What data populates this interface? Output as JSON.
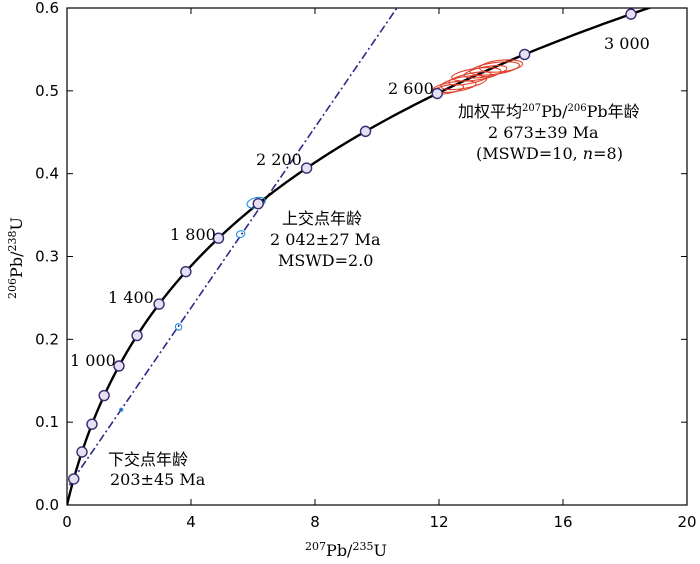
{
  "chart_data": {
    "type": "scatter",
    "title": "",
    "xlabel": {
      "sup1": "207",
      "base1": "Pb/",
      "sup2": "235",
      "base2": "U"
    },
    "ylabel": {
      "sup1": "206",
      "base1": "Pb/",
      "sup2": "238",
      "base2": "U"
    },
    "xlim": [
      0,
      20
    ],
    "ylim": [
      0,
      0.6
    ],
    "xticks": [
      "0",
      "4",
      "8",
      "12",
      "16",
      "20"
    ],
    "yticks": [
      "0.0",
      "0.1",
      "0.2",
      "0.3",
      "0.4",
      "0.5",
      "0.6"
    ],
    "concordia_ages_ma": [
      200,
      400,
      600,
      800,
      1000,
      1200,
      1400,
      1600,
      1800,
      2000,
      2200,
      2400,
      2600,
      2800,
      3000
    ],
    "age_labels": [
      "1 000",
      "1 400",
      "1 800",
      "2 200",
      "2 600",
      "3 000"
    ],
    "discordia": {
      "lower_intercept_ma": 203,
      "upper_intercept_ma": 2042
    },
    "ellipses": {
      "discordant_blue": [
        {
          "x": 6.1,
          "y": 0.365,
          "rx": 0.3,
          "ry": 0.006,
          "rotation": -15
        },
        {
          "x": 5.6,
          "y": 0.327,
          "rx": 0.14,
          "ry": 0.004,
          "rotation": -20
        },
        {
          "x": 3.6,
          "y": 0.215,
          "rx": 0.1,
          "ry": 0.004,
          "rotation": -35
        },
        {
          "x": 1.75,
          "y": 0.115,
          "rx": 0.05,
          "ry": 0.002,
          "rotation": -30
        }
      ],
      "concordant_red": [
        {
          "x": 12.5,
          "y": 0.505,
          "rx": 0.7,
          "ry": 0.006,
          "rotation": -8
        },
        {
          "x": 12.8,
          "y": 0.51,
          "rx": 0.75,
          "ry": 0.007,
          "rotation": -10
        },
        {
          "x": 13.0,
          "y": 0.515,
          "rx": 0.7,
          "ry": 0.006,
          "rotation": -12
        },
        {
          "x": 13.2,
          "y": 0.52,
          "rx": 0.8,
          "ry": 0.007,
          "rotation": -8
        },
        {
          "x": 13.5,
          "y": 0.523,
          "rx": 0.7,
          "ry": 0.006,
          "rotation": -10
        },
        {
          "x": 13.8,
          "y": 0.527,
          "rx": 0.8,
          "ry": 0.007,
          "rotation": -8
        },
        {
          "x": 14.0,
          "y": 0.53,
          "rx": 0.7,
          "ry": 0.007,
          "rotation": -6
        },
        {
          "x": 12.3,
          "y": 0.502,
          "rx": 0.5,
          "ry": 0.005,
          "rotation": -10
        }
      ]
    },
    "annotations": {
      "upper": {
        "line1": "上交点年龄",
        "line2": "2 042±27 Ma",
        "line3": "MSWD=2.0"
      },
      "lower": {
        "line1": "下交点年龄",
        "line2": "203±45 Ma"
      },
      "weighted": {
        "line1_a": "加权平均",
        "line1_sup1": "207",
        "line1_b": "Pb/",
        "line1_sup2": "206",
        "line1_c": "Pb年龄",
        "line2": "2 673±39 Ma",
        "line3_a": "(MSWD=10, ",
        "line3_n": "n",
        "line3_b": "=8)"
      }
    },
    "colors": {
      "concordia": "#000000",
      "age_marker_fill": "#e6e0f5",
      "age_marker_stroke": "#3a2a6e",
      "discordia": "#2e2a8a",
      "blue_ellipse": "#1e90d8",
      "red_ellipse": "#e0402a"
    }
  }
}
